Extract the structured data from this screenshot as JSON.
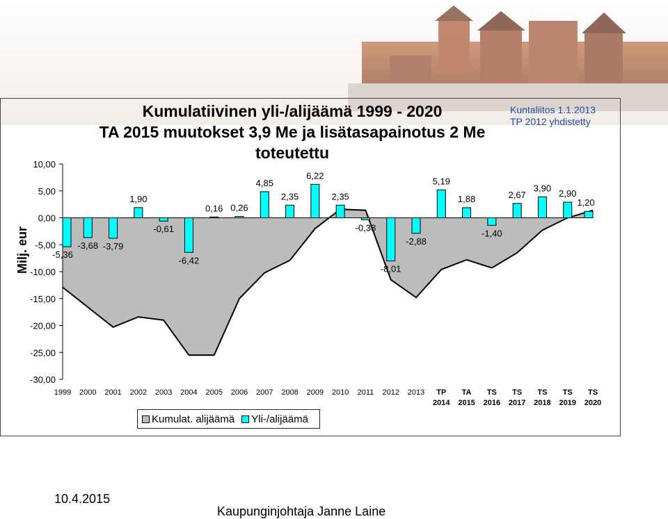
{
  "title_lines": [
    "Kumulatiivinen yli-/alijäämä 1999 - 2020",
    "TA 2015 muutokset 3,9 Me ja lisätasapainotus 2 Me",
    "toteutettu"
  ],
  "notes": [
    "Kuntaliitos 1.1.2013",
    "TP 2012 yhdistetty"
  ],
  "footer": {
    "date": "10.4.2015",
    "author": "Kaupunginjohtaja Janne Laine"
  },
  "colors": {
    "bar": "#00ffff",
    "area": "#bcbcbc",
    "note": "#1f4ea0"
  },
  "chart_data": {
    "type": "bar",
    "ylabel": "Milj. eur",
    "ylim": [
      -30,
      10
    ],
    "yticks": [
      10,
      5,
      0,
      -5,
      -10,
      -15,
      -20,
      -25,
      -30
    ],
    "ytick_labels": [
      "10,00",
      "5,00",
      "0,00",
      "-5,00",
      "-10,00",
      "-15,00",
      "-20,00",
      "-25,00",
      "-30,00"
    ],
    "categories": [
      "1999",
      "2000",
      "2001",
      "2002",
      "2003",
      "2004",
      "2005",
      "2006",
      "2007",
      "2008",
      "2009",
      "2010",
      "2011",
      "2012",
      "2013",
      "TP 2014",
      "TA 2015",
      "TS 2016",
      "TS 2017",
      "TS 2018",
      "TS 2019",
      "TS 2020"
    ],
    "legend": [
      "Kumulat. alijäämä",
      "Yli-/alijäämä"
    ],
    "legend_position": "bottom",
    "series": [
      {
        "name": "Kumulat. alijäämä",
        "kind": "area",
        "values": [
          -12.9,
          -16.6,
          -20.3,
          -18.4,
          -19.0,
          -25.5,
          -25.5,
          -15.0,
          -10.2,
          -7.9,
          -2.0,
          1.6,
          1.4,
          -11.5,
          -14.8,
          -9.6,
          -7.8,
          -9.3,
          -6.5,
          -2.3,
          0.0,
          1.4
        ]
      },
      {
        "name": "Yli-/alijäämä",
        "kind": "bar",
        "values": [
          -5.36,
          -3.68,
          -3.79,
          1.9,
          -0.61,
          -6.42,
          0.16,
          0.26,
          4.85,
          2.35,
          6.22,
          2.35,
          -0.38,
          -8.01,
          -2.88,
          5.19,
          1.88,
          -1.4,
          2.67,
          3.9,
          2.9,
          1.2
        ],
        "labels": [
          "-5,36",
          "-3,68",
          "-3,79",
          "1,90",
          "-0,61",
          "-6,42",
          "0,16",
          "0,26",
          "4,85",
          "2,35",
          "6,22",
          "2,35",
          "-0,38",
          "-8,01",
          "-2,88",
          "5,19",
          "1,88",
          "-1,40",
          "2,67",
          "3,90",
          "2,90",
          "1,20"
        ]
      }
    ]
  }
}
